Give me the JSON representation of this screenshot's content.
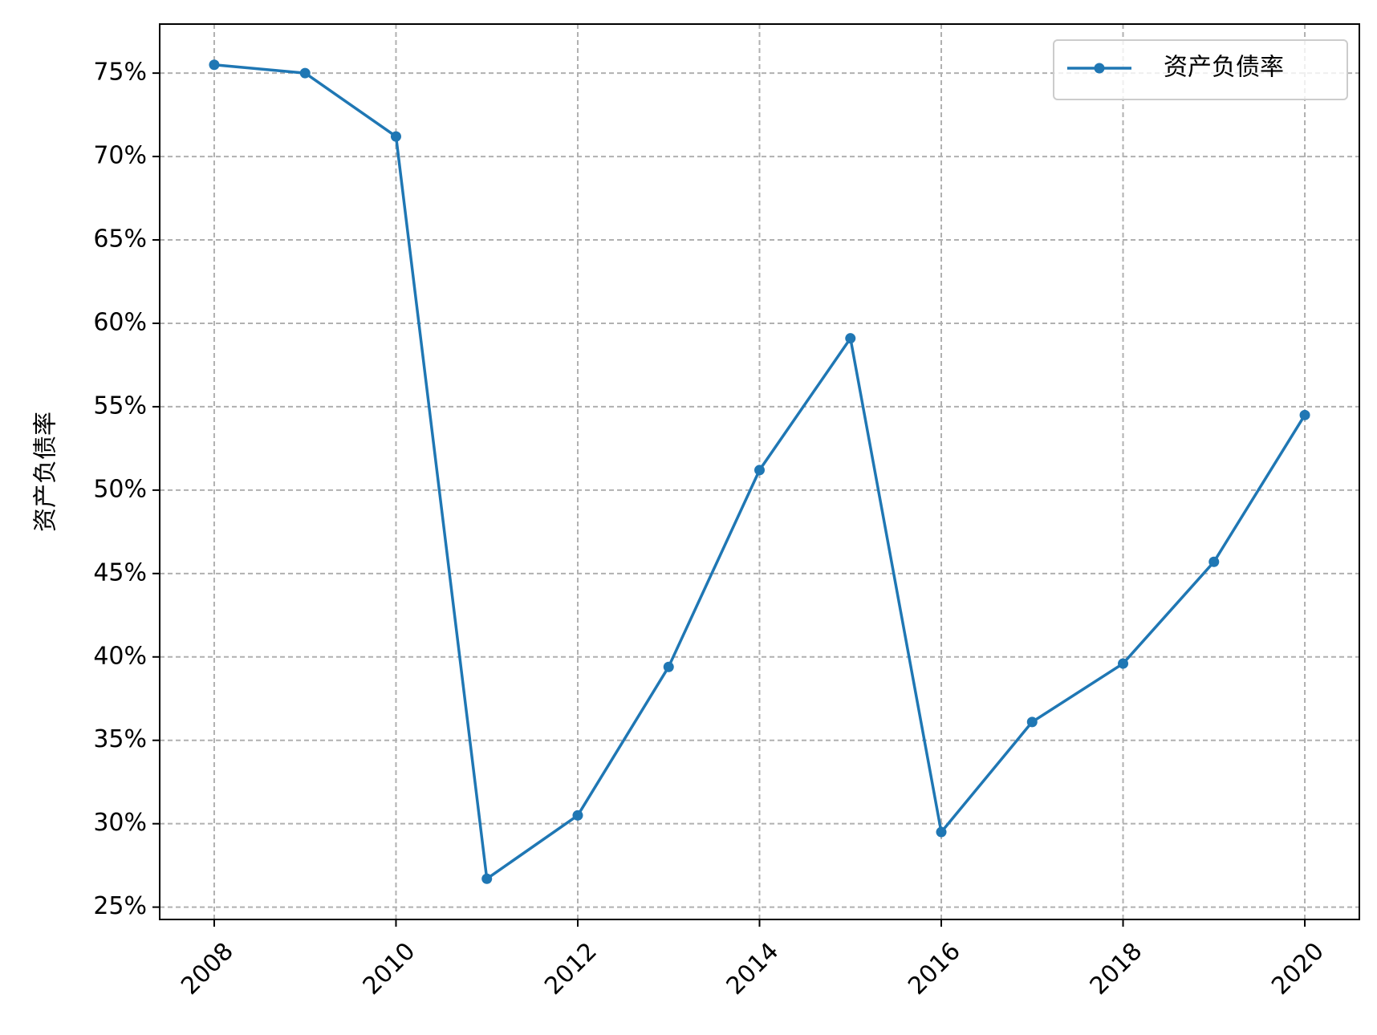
{
  "chart_data": {
    "type": "line",
    "title": "",
    "xlabel": "",
    "ylabel": "资产负债率",
    "x": [
      2008,
      2009,
      2010,
      2011,
      2012,
      2013,
      2014,
      2015,
      2016,
      2017,
      2018,
      2019,
      2020
    ],
    "series": [
      {
        "name": "资产负债率",
        "color": "#1f77b4",
        "marker": "circle",
        "values": [
          0.755,
          0.75,
          0.712,
          0.267,
          0.305,
          0.394,
          0.512,
          0.591,
          0.295,
          0.361,
          0.396,
          0.457,
          0.545
        ]
      }
    ],
    "xticks": [
      2008,
      2010,
      2012,
      2014,
      2016,
      2018,
      2020
    ],
    "xtick_labels": [
      "2008",
      "2010",
      "2012",
      "2014",
      "2016",
      "2018",
      "2020"
    ],
    "yticks": [
      0.25,
      0.3,
      0.35,
      0.4,
      0.45,
      0.5,
      0.55,
      0.6,
      0.65,
      0.7,
      0.75
    ],
    "ytick_labels": [
      "25%",
      "30%",
      "35%",
      "40%",
      "45%",
      "50%",
      "55%",
      "60%",
      "65%",
      "70%",
      "75%"
    ],
    "xlim": [
      2007.4,
      2020.6
    ],
    "ylim": [
      0.2426,
      0.7794
    ],
    "grid": true,
    "grid_color": "#b0b0b0",
    "legend_position": "top-right"
  }
}
